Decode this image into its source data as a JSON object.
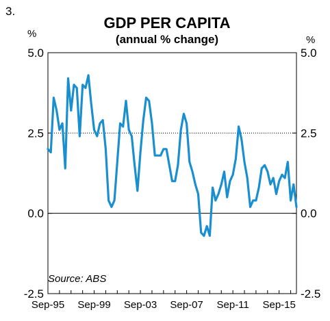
{
  "figure_number": "3.",
  "chart_data": {
    "type": "line",
    "title": "GDP PER CAPITA",
    "subtitle": "(annual % change)",
    "left_unit": "%",
    "right_unit": "%",
    "source": "Source: ABS",
    "x_range": [
      "Sep-95",
      "Jun-16"
    ],
    "ylim": [
      -2.5,
      5.0
    ],
    "y_ticks": [
      -2.5,
      0.0,
      2.5,
      5.0
    ],
    "y_tick_labels": [
      "-2.5",
      "0.0",
      "2.5",
      "5.0"
    ],
    "x_tick_labels": [
      "Sep-95",
      "Sep-99",
      "Sep-03",
      "Sep-07",
      "Sep-11",
      "Sep-15"
    ],
    "reference_line": {
      "value": 2.5,
      "style": "dotted"
    },
    "zero_line": true,
    "grid": false,
    "line_color": "#1a8fd0",
    "series": [
      {
        "values": [
          2.0,
          1.9,
          3.6,
          3.2,
          2.6,
          2.8,
          1.4,
          4.2,
          3.2,
          4.0,
          3.9,
          2.4,
          4.0,
          3.9,
          4.3,
          3.4,
          2.6,
          2.4,
          2.8,
          2.9,
          2.0,
          0.4,
          0.2,
          0.4,
          1.6,
          2.8,
          2.7,
          3.5,
          2.6,
          2.4,
          1.5,
          0.7,
          1.9,
          2.9,
          3.6,
          3.5,
          2.8,
          1.8,
          1.8,
          1.8,
          2.0,
          2.0,
          1.5,
          1.0,
          1.0,
          1.5,
          2.6,
          3.1,
          2.8,
          1.6,
          1.3,
          0.9,
          0.6,
          -0.6,
          -0.7,
          -0.4,
          -0.7,
          0.8,
          0.4,
          0.6,
          0.9,
          1.3,
          0.5,
          1.0,
          1.2,
          1.7,
          2.7,
          2.3,
          1.6,
          1.1,
          0.2,
          0.4,
          0.4,
          0.8,
          1.4,
          1.5,
          1.3,
          0.9,
          1.1,
          0.6,
          1.0,
          1.2,
          1.1,
          1.6,
          0.4,
          0.9,
          0.2
        ]
      }
    ]
  }
}
